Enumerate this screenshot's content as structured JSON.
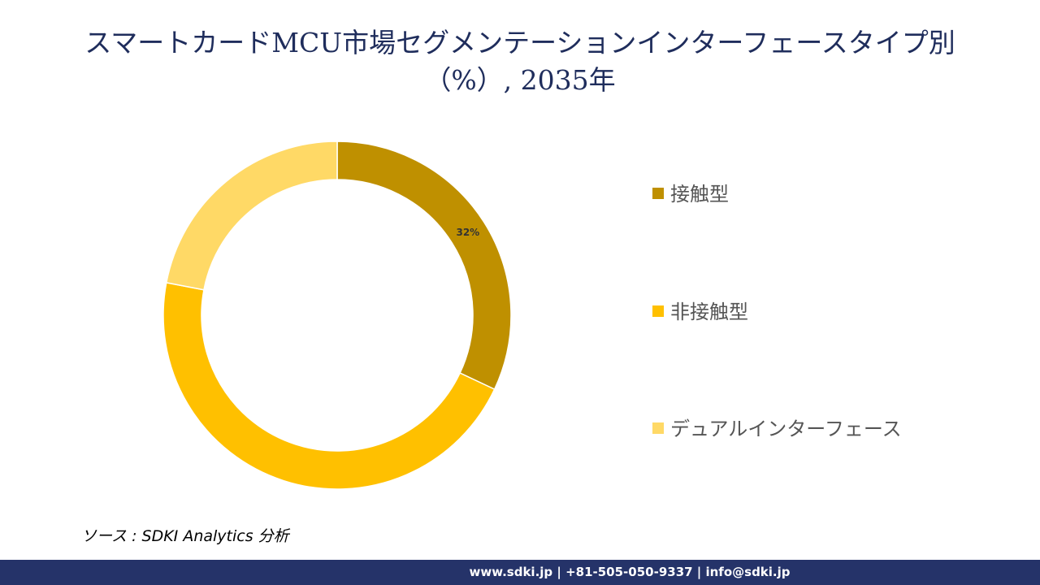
{
  "title": {
    "line1": "スマートカードMCU市場セグメンテーションインターフェースタイプ別",
    "line2": "（%）, 2035年"
  },
  "chart_data": {
    "type": "pie",
    "style": "donut",
    "categories": [
      "接触型",
      "非接触型",
      "デュアルインターフェース"
    ],
    "values": [
      32,
      46,
      22
    ],
    "data_labels": [
      "32%",
      "",
      ""
    ],
    "colors": [
      "#bf9000",
      "#ffc000",
      "#ffd966"
    ],
    "legend_position": "right"
  },
  "source": "ソース : SDKI Analytics 分析",
  "footer": "www.sdki.jp | +81-505-050-9337 | info@sdki.jp"
}
